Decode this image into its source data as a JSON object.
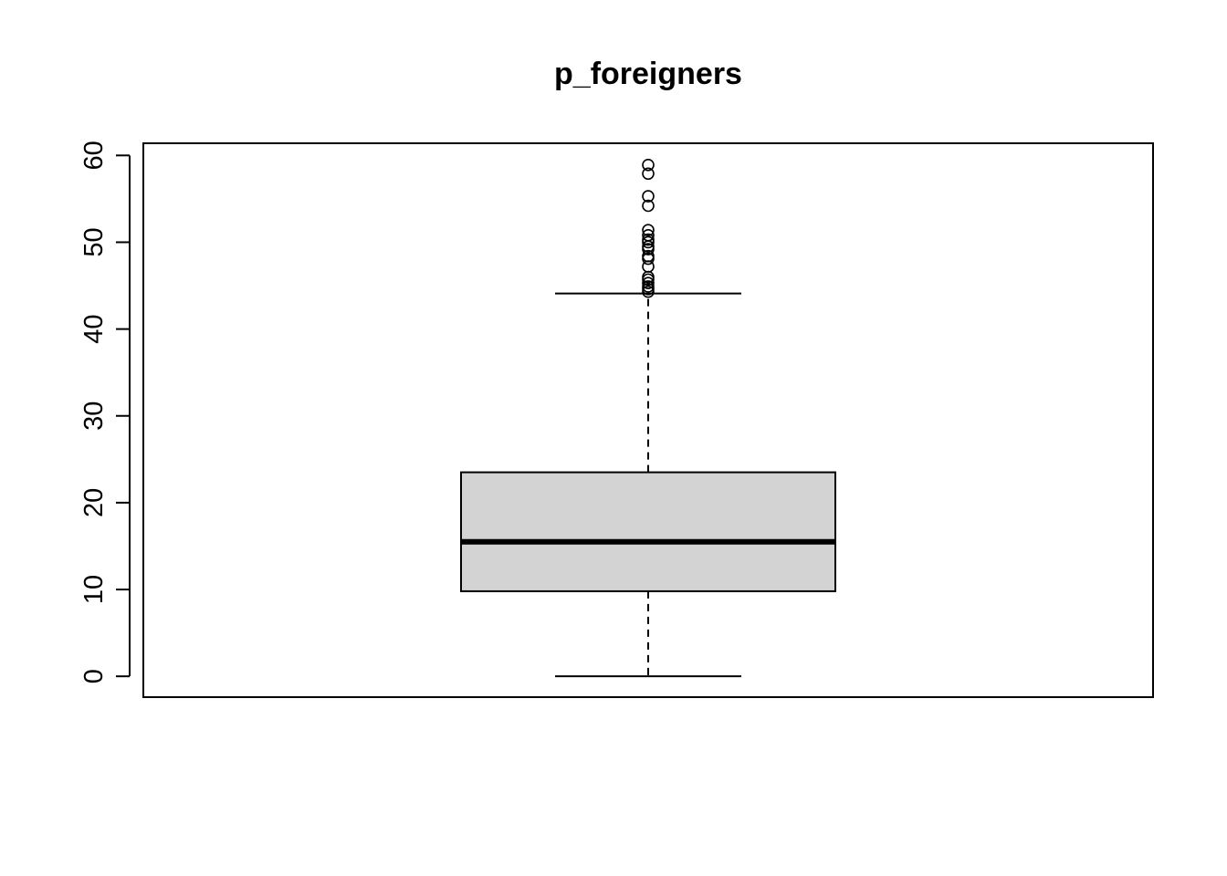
{
  "chart_data": {
    "type": "boxplot",
    "title": "p_foreigners",
    "xlabel": "",
    "ylabel": "",
    "ylim": [
      -2.4,
      61.4
    ],
    "y_ticks": [
      0,
      10,
      20,
      30,
      40,
      50,
      60
    ],
    "y_tick_labels": [
      "0",
      "10",
      "20",
      "30",
      "40",
      "50",
      "60"
    ],
    "grid": false,
    "box": {
      "whisker_low": 0,
      "q1": 9.8,
      "median": 15.5,
      "q3": 23.5,
      "whisker_high": 44.1
    },
    "outliers": [
      44.3,
      44.6,
      44.9,
      45.3,
      45.7,
      46.0,
      47.2,
      48.1,
      48.4,
      49.2,
      49.5,
      50.0,
      50.3,
      50.8,
      51.4,
      54.2,
      55.3,
      57.9,
      58.9
    ],
    "colors": {
      "box_fill": "#d3d3d3",
      "stroke": "#000000",
      "background": "#ffffff"
    }
  }
}
